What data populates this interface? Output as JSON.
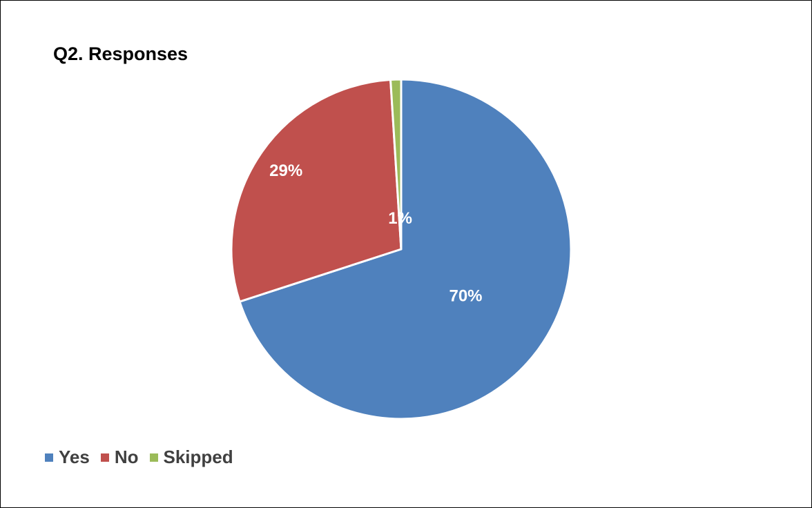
{
  "chart_data": {
    "type": "pie",
    "title": "Q2. Responses",
    "categories": [
      "Yes",
      "No",
      "Skipped"
    ],
    "values": [
      70,
      29,
      1
    ],
    "data_labels": [
      "70%",
      "29%",
      "1%"
    ],
    "colors": [
      "#4F81BD",
      "#C0504D",
      "#9BBB59"
    ],
    "legend_position": "bottom-left",
    "start_angle": "top, clockwise"
  }
}
